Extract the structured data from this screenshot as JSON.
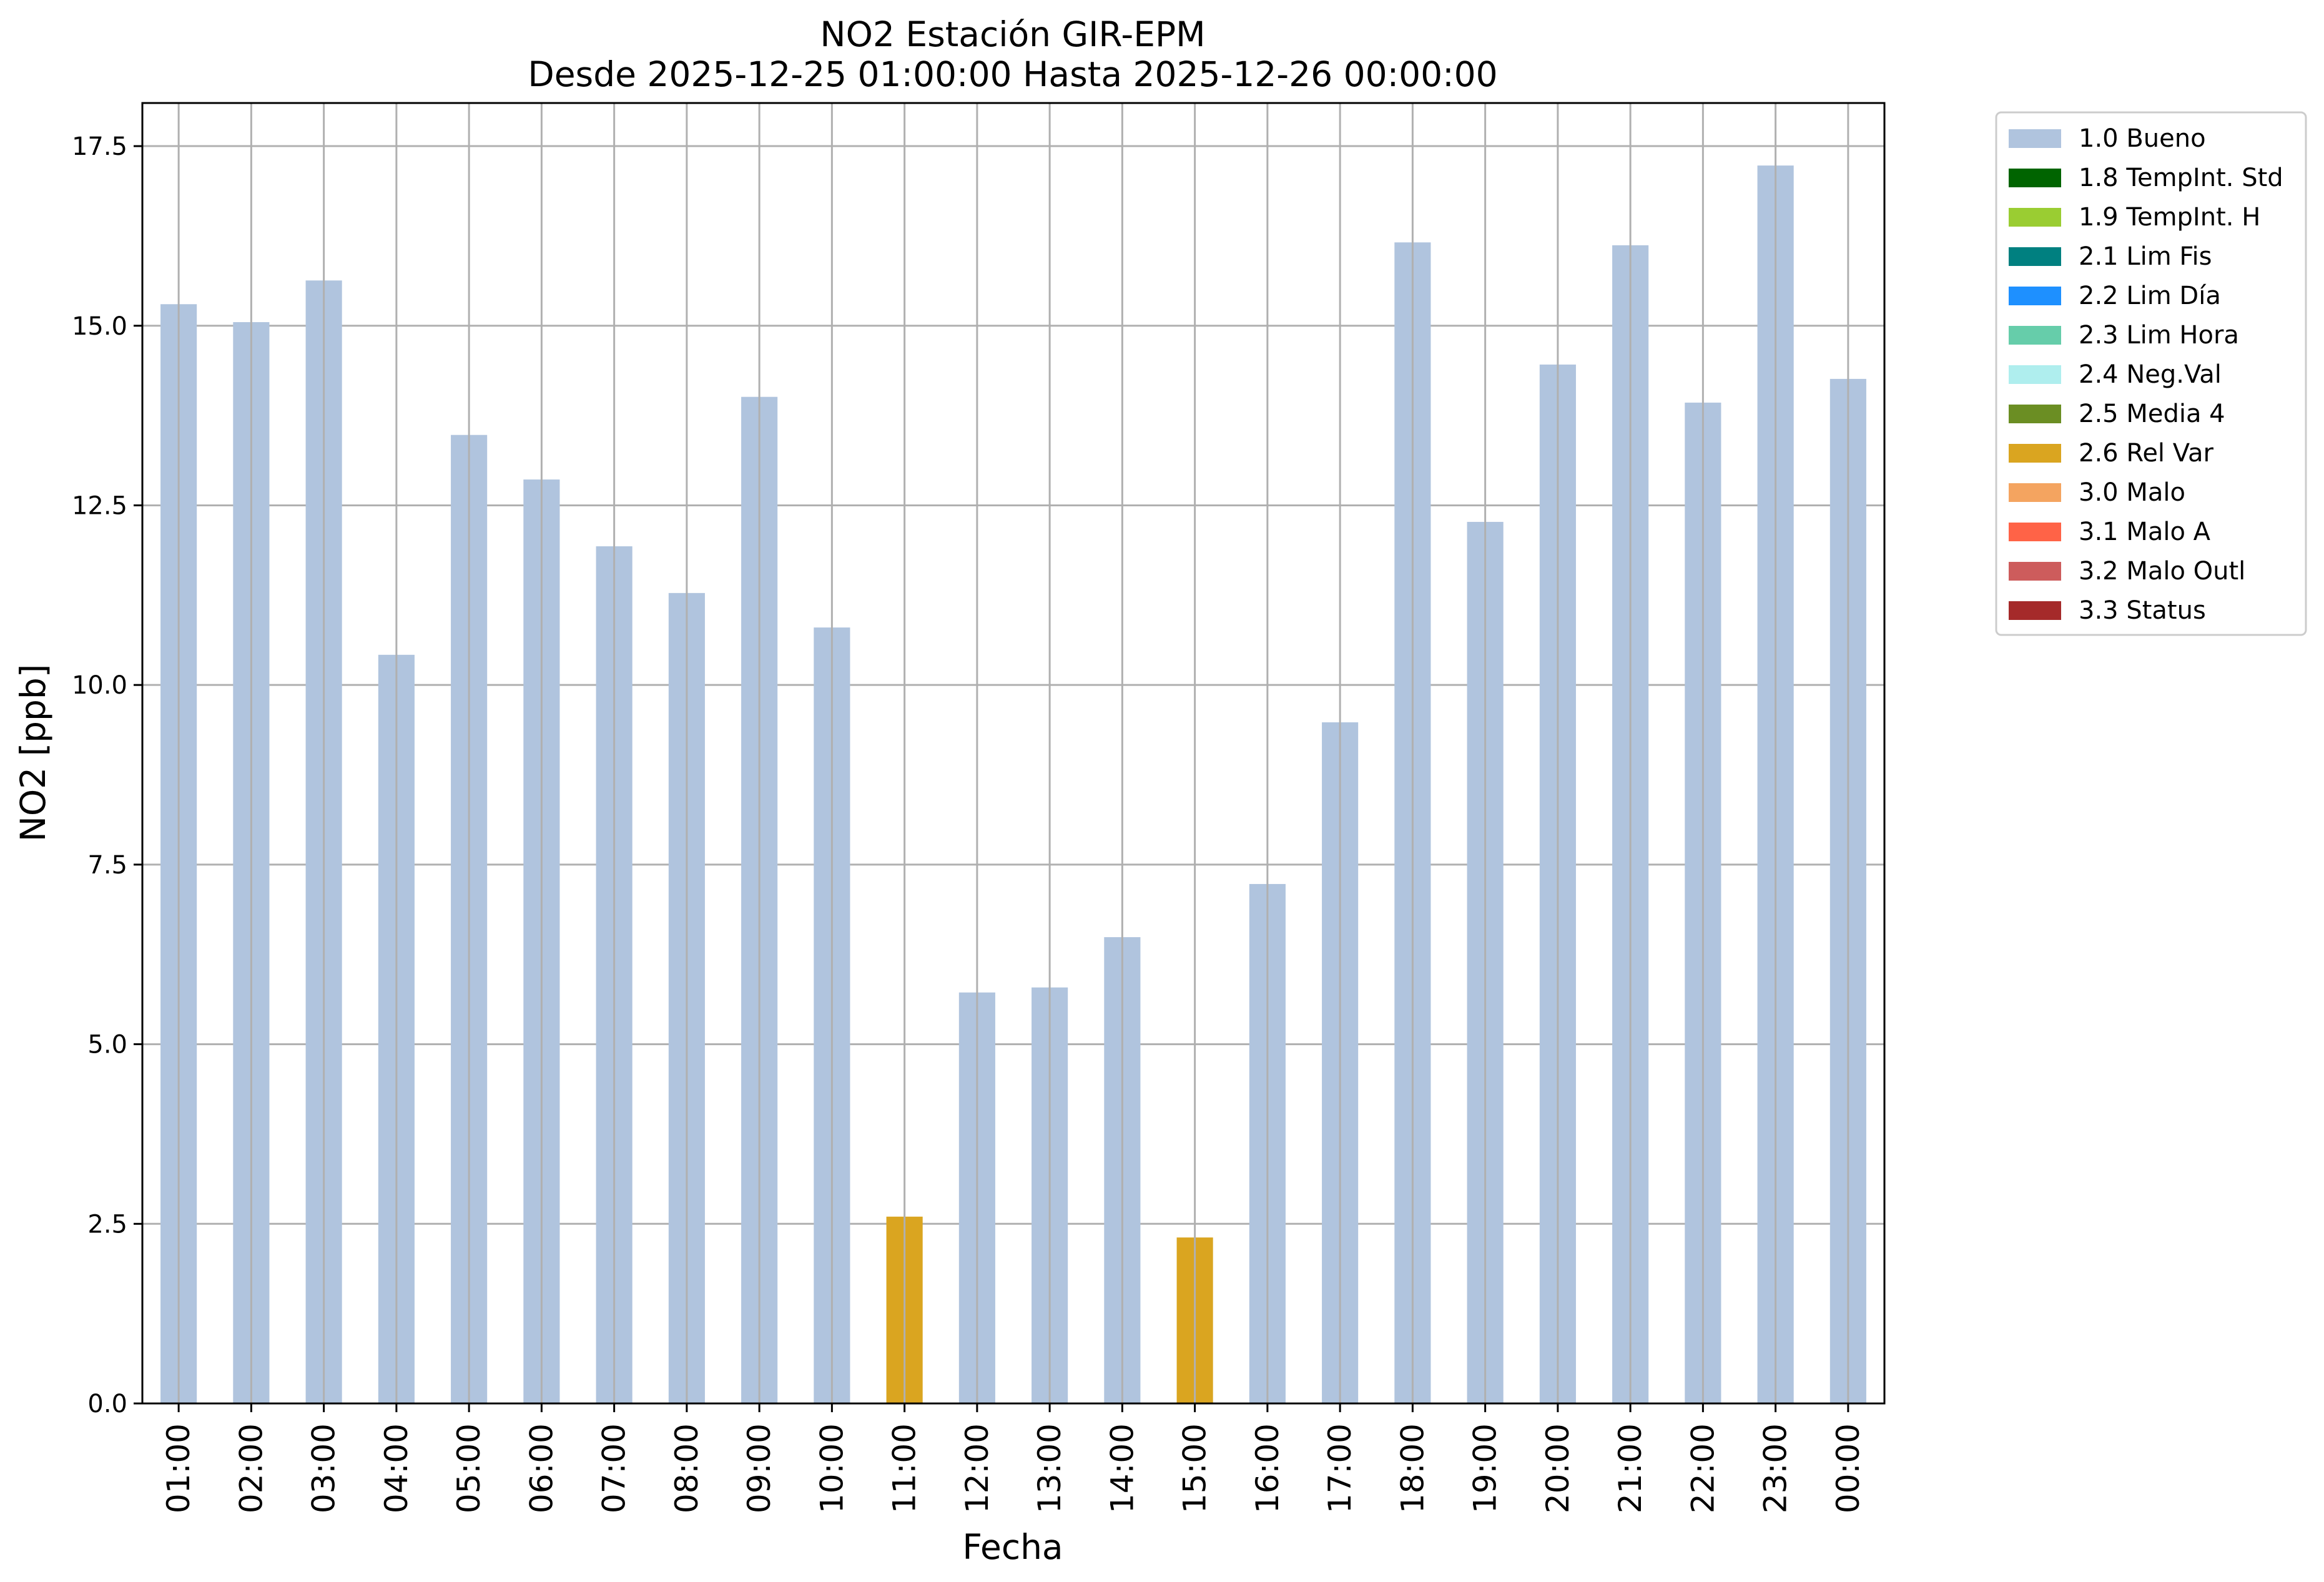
{
  "chart_data": {
    "type": "bar",
    "title": "NO2 Estación GIR-EPM",
    "subtitle": "Desde 2025-12-25 01:00:00 Hasta 2025-12-26 00:00:00",
    "xlabel": "Fecha",
    "ylabel": "NO2 [ppb]",
    "ylim": [
      0,
      18.1
    ],
    "yticks": [
      "0.0",
      "2.5",
      "5.0",
      "7.5",
      "10.0",
      "12.5",
      "15.0",
      "17.5"
    ],
    "grid": true,
    "legend_position": "outside-right",
    "categories": [
      "01:00",
      "02:00",
      "03:00",
      "04:00",
      "05:00",
      "06:00",
      "07:00",
      "08:00",
      "09:00",
      "10:00",
      "11:00",
      "12:00",
      "13:00",
      "14:00",
      "15:00",
      "16:00",
      "17:00",
      "18:00",
      "19:00",
      "20:00",
      "21:00",
      "22:00",
      "23:00",
      "00:00"
    ],
    "values": [
      15.3,
      15.05,
      15.63,
      10.42,
      13.48,
      12.86,
      11.93,
      11.28,
      14.01,
      10.8,
      2.6,
      5.72,
      5.79,
      6.49,
      2.31,
      7.23,
      9.48,
      16.16,
      12.27,
      14.46,
      16.12,
      13.93,
      17.23,
      14.26
    ],
    "flags": [
      "1.0 Bueno",
      "1.0 Bueno",
      "1.0 Bueno",
      "1.0 Bueno",
      "1.0 Bueno",
      "1.0 Bueno",
      "1.0 Bueno",
      "1.0 Bueno",
      "1.0 Bueno",
      "1.0 Bueno",
      "2.6 Rel Var",
      "1.0 Bueno",
      "1.0 Bueno",
      "1.0 Bueno",
      "2.6 Rel Var",
      "1.0 Bueno",
      "1.0 Bueno",
      "1.0 Bueno",
      "1.0 Bueno",
      "1.0 Bueno",
      "1.0 Bueno",
      "1.0 Bueno",
      "1.0 Bueno",
      "1.0 Bueno"
    ],
    "legend": [
      {
        "label": "1.0 Bueno",
        "color": "#b0c4de"
      },
      {
        "label": "1.8 TempInt. Std",
        "color": "#006400"
      },
      {
        "label": "1.9 TempInt. H",
        "color": "#9acd32"
      },
      {
        "label": "2.1 Lim Fis",
        "color": "#008080"
      },
      {
        "label": "2.2 Lim Día",
        "color": "#1e90ff"
      },
      {
        "label": "2.3 Lim Hora",
        "color": "#66cdaa"
      },
      {
        "label": "2.4 Neg.Val",
        "color": "#afeeee"
      },
      {
        "label": "2.5 Media 4",
        "color": "#6b8e23"
      },
      {
        "label": "2.6 Rel Var",
        "color": "#daa520"
      },
      {
        "label": "3.0 Malo",
        "color": "#f4a460"
      },
      {
        "label": "3.1 Malo A",
        "color": "#ff6347"
      },
      {
        "label": "3.2 Malo Outl",
        "color": "#cd5c5c"
      },
      {
        "label": "3.3 Status",
        "color": "#a52a2a"
      }
    ]
  }
}
